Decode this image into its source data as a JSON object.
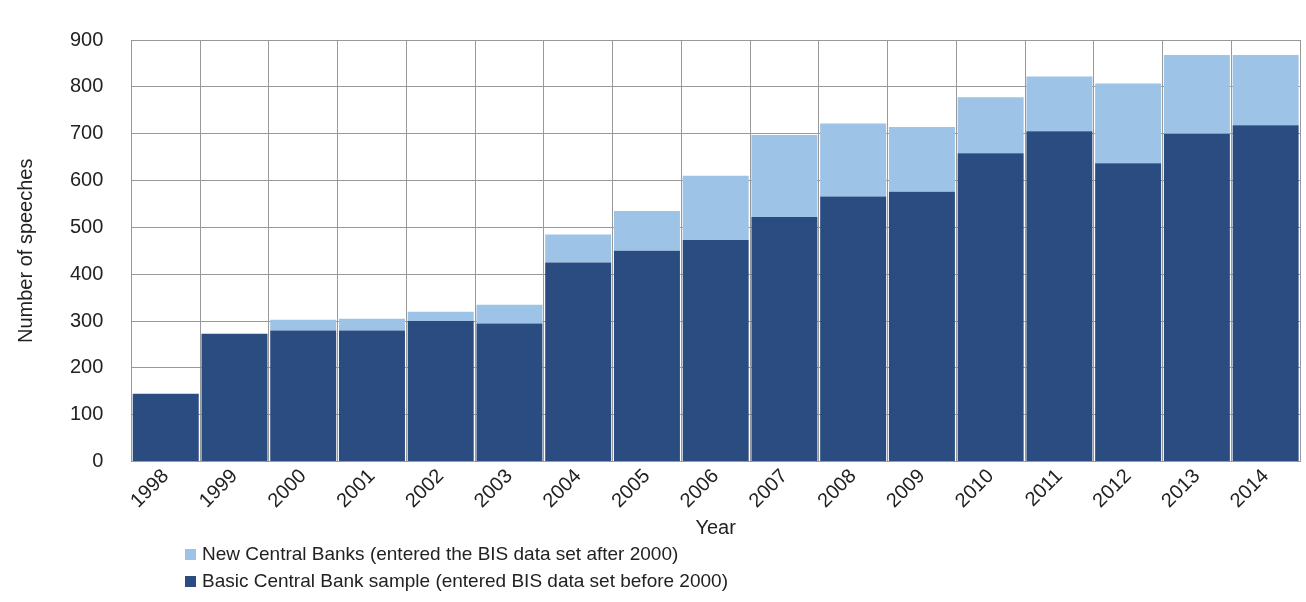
{
  "chart_data": {
    "type": "bar",
    "stacked": true,
    "xlabel": "Year",
    "ylabel": "Number of speeches",
    "categories": [
      "1998",
      "1999",
      "2000",
      "2001",
      "2002",
      "2003",
      "2004",
      "2005",
      "2006",
      "2007",
      "2008",
      "2009",
      "2010",
      "2011",
      "2012",
      "2013",
      "2014"
    ],
    "series": [
      {
        "name": "Basic Central Bank sample (entered BIS data set before 2000)",
        "color": "#2b4c80",
        "values": [
          145,
          273,
          280,
          280,
          300,
          295,
          425,
          450,
          473,
          522,
          566,
          576,
          658,
          705,
          637,
          700,
          718
        ]
      },
      {
        "name": "New Central Banks (entered the BIS data set after 2000)",
        "color": "#9dc3e6",
        "values": [
          0,
          0,
          23,
          25,
          20,
          40,
          60,
          85,
          137,
          175,
          156,
          138,
          120,
          117,
          170,
          168,
          150
        ]
      }
    ],
    "ylim": [
      0,
      900
    ],
    "yticks": [
      0,
      100,
      200,
      300,
      400,
      500,
      600,
      700,
      800,
      900
    ],
    "grid": true,
    "legend": "bottom left"
  }
}
